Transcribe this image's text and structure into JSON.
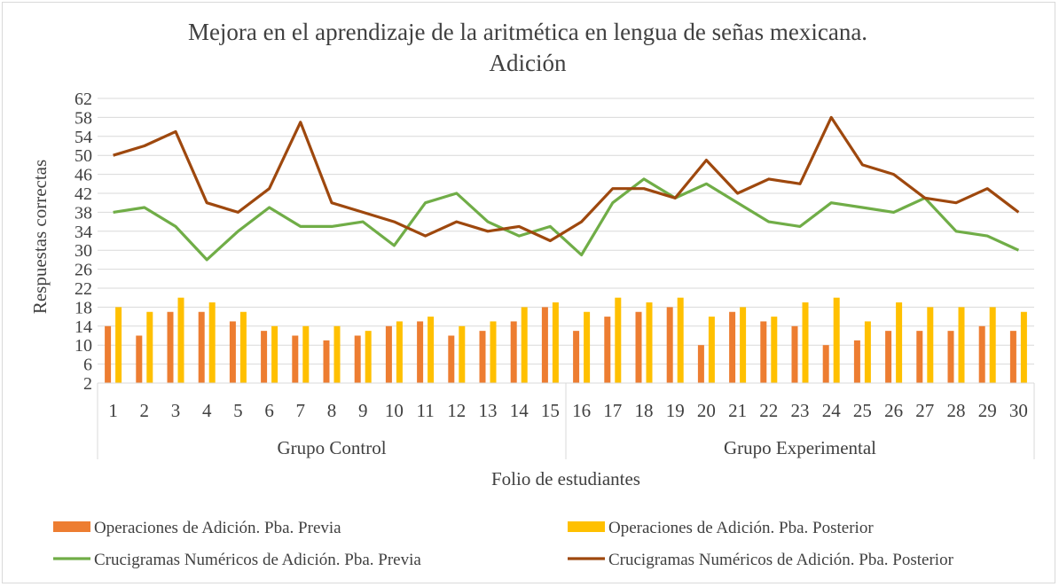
{
  "chart_data": {
    "type": "bar+line",
    "title": "Mejora en el aprendizaje de la aritmética en lengua de señas mexicana.",
    "subtitle": "Adición",
    "xlabel": "Folio de estudiantes",
    "ylabel": "Respuestas correctas",
    "ylim": [
      2,
      62
    ],
    "yticks": [
      2,
      6,
      10,
      14,
      18,
      22,
      26,
      30,
      34,
      38,
      42,
      46,
      50,
      54,
      58,
      62
    ],
    "grid": true,
    "categories": [
      "1",
      "2",
      "3",
      "4",
      "5",
      "6",
      "7",
      "8",
      "9",
      "10",
      "11",
      "12",
      "13",
      "14",
      "15",
      "16",
      "17",
      "18",
      "19",
      "20",
      "21",
      "22",
      "23",
      "24",
      "25",
      "26",
      "27",
      "28",
      "29",
      "30"
    ],
    "groups": [
      {
        "label": "Grupo Control",
        "from": 1,
        "to": 15
      },
      {
        "label": "Grupo Experimental",
        "from": 16,
        "to": 30
      }
    ],
    "series": [
      {
        "name": "Operaciones de Adición. Pba. Previa",
        "kind": "bar",
        "color": "#ED7D31",
        "values": [
          14,
          12,
          17,
          17,
          15,
          13,
          12,
          11,
          12,
          14,
          15,
          12,
          13,
          15,
          18,
          13,
          16,
          17,
          18,
          10,
          17,
          15,
          14,
          10,
          11,
          13,
          13,
          13,
          14,
          13
        ]
      },
      {
        "name": "Operaciones de Adición. Pba. Posterior",
        "kind": "bar",
        "color": "#FFC000",
        "values": [
          18,
          17,
          20,
          19,
          17,
          14,
          14,
          14,
          13,
          15,
          16,
          14,
          15,
          18,
          19,
          17,
          20,
          19,
          20,
          16,
          18,
          16,
          19,
          20,
          15,
          19,
          18,
          18,
          18,
          17
        ]
      },
      {
        "name": "Crucigramas Numéricos de Adición. Pba. Previa",
        "kind": "line",
        "color": "#70AD47",
        "values": [
          38,
          39,
          35,
          28,
          34,
          39,
          35,
          35,
          36,
          31,
          40,
          42,
          36,
          33,
          35,
          29,
          40,
          45,
          41,
          44,
          40,
          36,
          35,
          40,
          39,
          38,
          41,
          34,
          33,
          30
        ]
      },
      {
        "name": "Crucigramas Numéricos de Adición. Pba. Posterior",
        "kind": "line",
        "color": "#9E480E",
        "values": [
          50,
          52,
          55,
          40,
          38,
          43,
          57,
          40,
          38,
          36,
          33,
          36,
          34,
          35,
          32,
          36,
          43,
          43,
          41,
          49,
          42,
          45,
          44,
          58,
          48,
          46,
          41,
          40,
          43,
          38
        ]
      }
    ],
    "legend_position": "bottom"
  }
}
